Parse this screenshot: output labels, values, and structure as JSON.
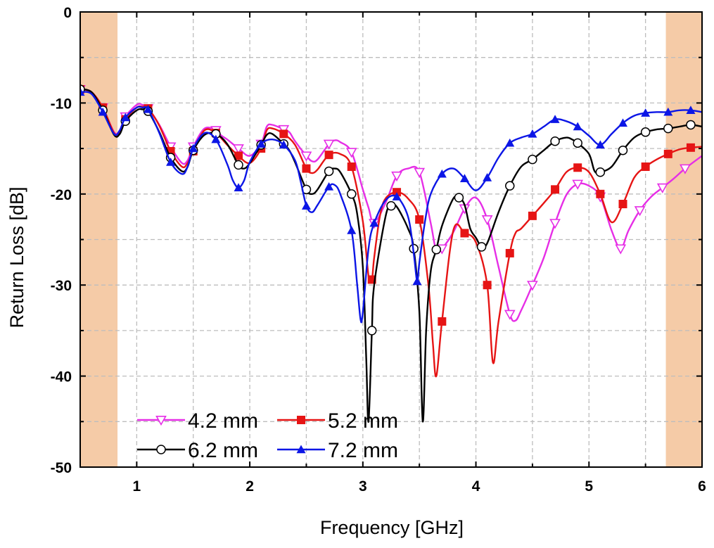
{
  "chart_data": {
    "type": "line",
    "xlabel": "Frequency [GHz]",
    "ylabel": "Return Loss [dB]",
    "xlim": [
      0.5,
      6
    ],
    "ylim": [
      -50,
      0
    ],
    "xticks": [
      "1",
      "2",
      "3",
      "4",
      "5",
      "6"
    ],
    "yticks": [
      "0",
      "-10",
      "-20",
      "-30",
      "-40",
      "-50"
    ],
    "grid": "dashed",
    "shaded_bands": [
      {
        "x_range": [
          0.5,
          0.83
        ],
        "color": "#f5cba7"
      },
      {
        "x_range": [
          5.68,
          6.0
        ],
        "color": "#f5cba7"
      }
    ],
    "legend_position": "bottom-left",
    "series": [
      {
        "name": "4.2 mm",
        "color": "#e62ee6",
        "marker": "triangle-down-open",
        "x": [
          0.5,
          0.6,
          0.7,
          0.8,
          0.85,
          0.9,
          1.0,
          1.05,
          1.1,
          1.2,
          1.3,
          1.4,
          1.45,
          1.5,
          1.6,
          1.7,
          1.75,
          1.8,
          1.9,
          2.0,
          2.1,
          2.15,
          2.2,
          2.3,
          2.35,
          2.4,
          2.5,
          2.55,
          2.6,
          2.7,
          2.75,
          2.8,
          2.9,
          3.0,
          3.05,
          3.1,
          3.2,
          3.3,
          3.4,
          3.5,
          3.6,
          3.65,
          3.7,
          3.8,
          3.9,
          4.0,
          4.1,
          4.2,
          4.3,
          4.35,
          4.4,
          4.5,
          4.6,
          4.7,
          4.8,
          4.9,
          5.0,
          5.1,
          5.2,
          5.28,
          5.35,
          5.45,
          5.55,
          5.65,
          5.75,
          5.85,
          6.0
        ],
        "y": [
          -8.5,
          -8.8,
          -10.5,
          -13.2,
          -13.0,
          -11.5,
          -10.2,
          -10.2,
          -10.6,
          -12.4,
          -14.8,
          -16.6,
          -16.3,
          -14.8,
          -12.8,
          -13.0,
          -13.6,
          -14.0,
          -15.0,
          -15.8,
          -14.5,
          -12.6,
          -12.4,
          -12.9,
          -13.2,
          -14.2,
          -15.8,
          -16.4,
          -16.2,
          -14.5,
          -14.1,
          -14.3,
          -15.4,
          -19.5,
          -21.5,
          -23.2,
          -21.0,
          -18.0,
          -17.2,
          -17.6,
          -23.2,
          -26.3,
          -26.0,
          -24.2,
          -21.6,
          -20.4,
          -22.8,
          -28.0,
          -33.2,
          -33.9,
          -32.8,
          -30.0,
          -27.0,
          -23.2,
          -20.1,
          -18.9,
          -19.1,
          -20.3,
          -24.0,
          -26.0,
          -24.0,
          -21.8,
          -20.3,
          -19.3,
          -18.3,
          -17.2,
          -15.8
        ]
      },
      {
        "name": "5.2 mm",
        "color": "#e61414",
        "marker": "square",
        "x": [
          0.5,
          0.6,
          0.7,
          0.8,
          0.85,
          0.9,
          1.0,
          1.05,
          1.1,
          1.2,
          1.3,
          1.4,
          1.45,
          1.5,
          1.6,
          1.7,
          1.8,
          1.9,
          2.0,
          2.1,
          2.15,
          2.2,
          2.3,
          2.4,
          2.5,
          2.55,
          2.6,
          2.7,
          2.8,
          2.9,
          3.0,
          3.05,
          3.08,
          3.1,
          3.15,
          3.2,
          3.3,
          3.4,
          3.5,
          3.58,
          3.62,
          3.65,
          3.7,
          3.8,
          3.9,
          4.0,
          4.1,
          4.15,
          4.2,
          4.3,
          4.35,
          4.4,
          4.5,
          4.6,
          4.7,
          4.8,
          4.9,
          5.0,
          5.1,
          5.2,
          5.3,
          5.4,
          5.5,
          5.6,
          5.7,
          5.8,
          5.9,
          6.0
        ],
        "y": [
          -8.5,
          -8.8,
          -10.5,
          -13.3,
          -13.3,
          -11.8,
          -10.5,
          -10.4,
          -10.6,
          -12.5,
          -15.3,
          -17.0,
          -16.6,
          -15.3,
          -13.0,
          -13.3,
          -14.6,
          -15.8,
          -16.6,
          -15.0,
          -13.0,
          -12.8,
          -13.4,
          -14.6,
          -17.2,
          -17.7,
          -17.3,
          -15.7,
          -15.6,
          -17.0,
          -23.0,
          -29.0,
          -29.4,
          -27.0,
          -22.5,
          -20.5,
          -19.8,
          -20.5,
          -22.8,
          -30.0,
          -36.5,
          -40.0,
          -34.0,
          -24.0,
          -24.3,
          -25.3,
          -30.0,
          -38.5,
          -34.0,
          -26.5,
          -24.3,
          -23.8,
          -22.4,
          -21.0,
          -19.5,
          -17.6,
          -17.1,
          -17.6,
          -20.0,
          -23.1,
          -21.1,
          -18.2,
          -17.0,
          -16.2,
          -15.6,
          -15.1,
          -14.9,
          -14.8
        ]
      },
      {
        "name": "6.2 mm",
        "color": "#000000",
        "marker": "circle-open",
        "x": [
          0.5,
          0.6,
          0.7,
          0.8,
          0.85,
          0.9,
          1.0,
          1.05,
          1.1,
          1.2,
          1.3,
          1.4,
          1.45,
          1.5,
          1.6,
          1.7,
          1.8,
          1.9,
          1.95,
          2.0,
          2.1,
          2.15,
          2.2,
          2.3,
          2.35,
          2.4,
          2.5,
          2.55,
          2.6,
          2.7,
          2.75,
          2.8,
          2.9,
          2.95,
          3.0,
          3.03,
          3.05,
          3.08,
          3.1,
          3.2,
          3.25,
          3.3,
          3.4,
          3.45,
          3.5,
          3.53,
          3.56,
          3.6,
          3.65,
          3.7,
          3.8,
          3.85,
          3.9,
          3.95,
          4.0,
          4.05,
          4.1,
          4.2,
          4.3,
          4.4,
          4.5,
          4.6,
          4.7,
          4.8,
          4.85,
          4.9,
          5.0,
          5.05,
          5.1,
          5.2,
          5.3,
          5.4,
          5.5,
          5.6,
          5.7,
          5.8,
          5.9,
          6.0
        ],
        "y": [
          -8.5,
          -8.8,
          -10.8,
          -13.5,
          -13.4,
          -12.0,
          -10.8,
          -10.7,
          -10.9,
          -13.2,
          -16.0,
          -17.5,
          -17.0,
          -15.2,
          -13.5,
          -13.4,
          -14.5,
          -16.8,
          -17.2,
          -16.6,
          -14.6,
          -13.5,
          -13.4,
          -14.5,
          -15.2,
          -16.5,
          -19.5,
          -20.0,
          -19.5,
          -17.5,
          -17.2,
          -17.6,
          -20.0,
          -22.2,
          -28.0,
          -38.0,
          -45.0,
          -35.0,
          -30.0,
          -22.5,
          -21.3,
          -21.4,
          -23.8,
          -26.0,
          -33.0,
          -45.0,
          -35.0,
          -28.5,
          -26.1,
          -23.5,
          -20.5,
          -20.4,
          -21.2,
          -23.8,
          -24.8,
          -25.8,
          -25.4,
          -22.0,
          -19.1,
          -17.0,
          -16.2,
          -15.2,
          -14.2,
          -13.8,
          -14.0,
          -14.4,
          -15.6,
          -17.5,
          -17.6,
          -17.0,
          -15.2,
          -13.8,
          -13.2,
          -12.9,
          -12.8,
          -12.6,
          -12.4,
          -12.6
        ]
      },
      {
        "name": "7.2 mm",
        "color": "#0c16e6",
        "marker": "triangle-up",
        "x": [
          0.5,
          0.6,
          0.7,
          0.8,
          0.85,
          0.9,
          1.0,
          1.05,
          1.1,
          1.2,
          1.3,
          1.4,
          1.45,
          1.5,
          1.6,
          1.7,
          1.8,
          1.85,
          1.9,
          1.95,
          2.0,
          2.1,
          2.2,
          2.3,
          2.4,
          2.45,
          2.5,
          2.55,
          2.6,
          2.7,
          2.75,
          2.8,
          2.9,
          2.95,
          2.98,
          3.0,
          3.05,
          3.1,
          3.2,
          3.3,
          3.4,
          3.45,
          3.48,
          3.5,
          3.55,
          3.6,
          3.7,
          3.8,
          3.9,
          4.0,
          4.1,
          4.2,
          4.3,
          4.4,
          4.5,
          4.6,
          4.7,
          4.8,
          4.9,
          5.0,
          5.1,
          5.2,
          5.3,
          5.4,
          5.5,
          5.6,
          5.7,
          5.8,
          5.9,
          6.0
        ],
        "y": [
          -8.8,
          -9.0,
          -11.0,
          -13.4,
          -13.0,
          -11.6,
          -10.5,
          -10.5,
          -10.7,
          -13.3,
          -16.5,
          -17.8,
          -17.0,
          -15.0,
          -13.3,
          -14.0,
          -16.7,
          -18.5,
          -19.3,
          -18.5,
          -16.5,
          -14.5,
          -14.0,
          -14.6,
          -16.3,
          -18.6,
          -21.3,
          -22.0,
          -21.2,
          -19.2,
          -19.0,
          -20.0,
          -24.0,
          -30.0,
          -33.8,
          -33.0,
          -26.0,
          -23.2,
          -20.7,
          -20.3,
          -22.5,
          -26.5,
          -29.6,
          -27.5,
          -23.0,
          -20.0,
          -17.8,
          -17.2,
          -18.3,
          -19.6,
          -18.2,
          -16.0,
          -14.4,
          -13.8,
          -13.4,
          -12.6,
          -11.8,
          -12.0,
          -12.6,
          -13.6,
          -14.6,
          -13.4,
          -12.2,
          -11.4,
          -11.1,
          -11.0,
          -11.0,
          -10.8,
          -10.8,
          -11.0
        ]
      }
    ]
  }
}
